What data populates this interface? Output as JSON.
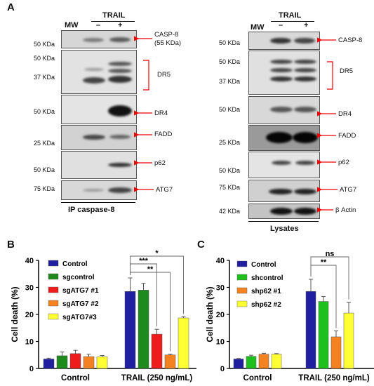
{
  "panels": {
    "a": "A",
    "b": "B",
    "c": "C"
  },
  "blot_left": {
    "mw_header": "MW",
    "treatment": "TRAIL",
    "minus": "–",
    "plus": "+",
    "caption": "IP caspase-8",
    "rows": [
      {
        "mw": [
          "50 KDa"
        ],
        "label": "CASP-8",
        "sub": "(55 KDa)"
      },
      {
        "mw": [
          "50 KDa",
          "37 KDa"
        ],
        "label": "DR5",
        "sub": ""
      },
      {
        "mw": [
          "50 KDa"
        ],
        "label": "DR4",
        "sub": ""
      },
      {
        "mw": [
          "25 KDa"
        ],
        "label": "FADD",
        "sub": ""
      },
      {
        "mw": [
          "50 KDa"
        ],
        "label": "p62",
        "sub": ""
      },
      {
        "mw": [
          "75 KDa"
        ],
        "label": "ATG7",
        "sub": ""
      }
    ]
  },
  "blot_right": {
    "mw_header": "MW",
    "treatment": "TRAIL",
    "minus": "–",
    "plus": "+",
    "caption": "Lysates",
    "rows": [
      {
        "mw": [
          "50 KDa"
        ],
        "label": "CASP-8"
      },
      {
        "mw": [
          "50 KDa",
          "37 KDa"
        ],
        "label": "DR5"
      },
      {
        "mw": [
          "50 KDa"
        ],
        "label": "DR4"
      },
      {
        "mw": [
          "25 KDa"
        ],
        "label": "FADD"
      },
      {
        "mw": [
          "50 KDa"
        ],
        "label": "p62"
      },
      {
        "mw": [
          "75 KDa"
        ],
        "label": "ATG7"
      },
      {
        "mw": [
          "42 KDa"
        ],
        "label": "β Actin"
      }
    ]
  },
  "chart_data": [
    {
      "type": "bar",
      "ylabel": "Cell death (%)",
      "ylim": [
        0,
        40
      ],
      "yticks": [
        0,
        10,
        20,
        30,
        40
      ],
      "categories": [
        "Control",
        "TRAIL (250 ng/mL)"
      ],
      "series": [
        {
          "name": "Control",
          "color": "#1f1fa0",
          "values": [
            3.5,
            28.5
          ],
          "errors": [
            0.3,
            5.0
          ]
        },
        {
          "name": "sgcontrol",
          "color": "#1e8a1e",
          "values": [
            4.7,
            29.0
          ],
          "errors": [
            1.4,
            2.5
          ]
        },
        {
          "name": "sgATG7 #1",
          "color": "#ee1c1c",
          "values": [
            5.5,
            12.7
          ],
          "errors": [
            1.2,
            1.8
          ]
        },
        {
          "name": "sgATG7 #2",
          "color": "#f58220",
          "values": [
            4.4,
            5.0
          ],
          "errors": [
            0.9,
            0.3
          ]
        },
        {
          "name": "sgATG7#3",
          "color": "#ffff33",
          "values": [
            4.3,
            18.7
          ],
          "errors": [
            0.5,
            0.4
          ]
        }
      ],
      "significance": [
        "*",
        "***",
        "**"
      ]
    },
    {
      "type": "bar",
      "ylabel": "Cell death (%)",
      "ylim": [
        0,
        40
      ],
      "yticks": [
        0,
        10,
        20,
        30,
        40
      ],
      "categories": [
        "Control",
        "TRAIL (250 ng/mL)"
      ],
      "series": [
        {
          "name": "Control",
          "color": "#1f1fa0",
          "values": [
            3.5,
            28.5
          ],
          "errors": [
            0.2,
            4.5
          ]
        },
        {
          "name": "shcontrol",
          "color": "#1ec01e",
          "values": [
            4.5,
            24.8
          ],
          "errors": [
            0.4,
            1.8
          ]
        },
        {
          "name": "shp62 #1",
          "color": "#f58220",
          "values": [
            5.3,
            11.7
          ],
          "errors": [
            0.3,
            2.2
          ]
        },
        {
          "name": "shp62 #2",
          "color": "#ffff33",
          "values": [
            5.3,
            20.5
          ],
          "errors": [
            0.2,
            4.0
          ]
        }
      ],
      "significance": [
        "ns",
        "**"
      ]
    }
  ]
}
